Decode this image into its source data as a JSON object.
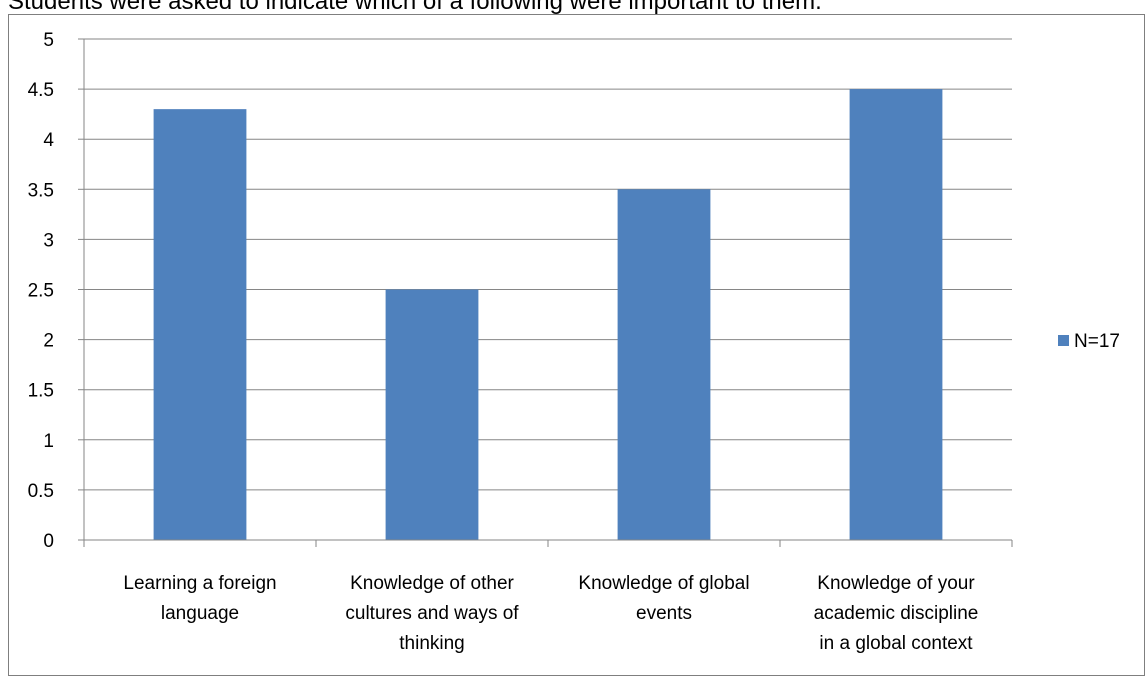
{
  "heading": "Students were asked to indicate which of a following were important to them.",
  "chart_data": {
    "type": "bar",
    "title": "",
    "xlabel": "",
    "ylabel": "",
    "ylim": [
      0,
      5
    ],
    "y_ticks": [
      "0",
      "0.5",
      "1",
      "1.5",
      "2",
      "2.5",
      "3",
      "3.5",
      "4",
      "4.5",
      "5"
    ],
    "categories": [
      [
        "Learning a foreign",
        "language"
      ],
      [
        "Knowledge of other",
        "cultures and ways of",
        "thinking"
      ],
      [
        "Knowledge of global",
        "events"
      ],
      [
        "Knowledge of your",
        "academic discipline",
        "in a global context"
      ]
    ],
    "series": [
      {
        "name": "N=17",
        "values": [
          4.3,
          2.5,
          3.5,
          4.5
        ],
        "color": "#4f81bd"
      }
    ],
    "grid": true,
    "legend_position": "right"
  }
}
